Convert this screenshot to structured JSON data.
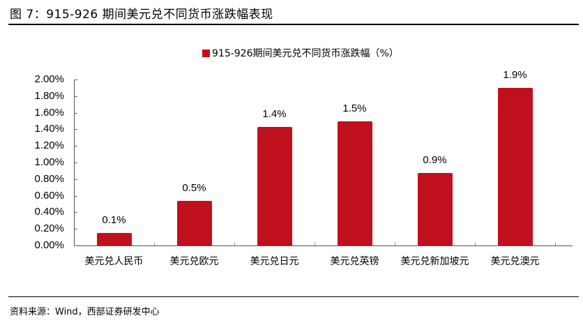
{
  "figure": {
    "title": "图 7：915-926 期间美元兑不同货币涨跌幅表现",
    "source": "资料来源：Wind，西部证券研发中心"
  },
  "legend": {
    "label": "915-926期间美元兑不同货币涨跌幅（%）",
    "color": "#c0101e"
  },
  "chart_data": {
    "type": "bar",
    "title": "",
    "xlabel": "",
    "ylabel": "",
    "categories": [
      "美元兑人民币",
      "美元兑欧元",
      "美元兑日元",
      "美元兑英镑",
      "美元兑新加坡元",
      "美元兑澳元"
    ],
    "series": [
      {
        "name": "915-926期间美元兑不同货币涨跌幅（%）",
        "values": [
          0.15,
          0.54,
          1.43,
          1.5,
          0.87,
          1.9
        ],
        "data_labels": [
          "0.1%",
          "0.5%",
          "1.4%",
          "1.5%",
          "0.9%",
          "1.9%"
        ],
        "color": "#c0101e"
      }
    ],
    "ylim": [
      0,
      2.0
    ],
    "yticks": [
      "0.00%",
      "0.20%",
      "0.40%",
      "0.60%",
      "0.80%",
      "1.00%",
      "1.20%",
      "1.40%",
      "1.60%",
      "1.80%",
      "2.00%"
    ],
    "grid": false,
    "legend_position": "top"
  }
}
